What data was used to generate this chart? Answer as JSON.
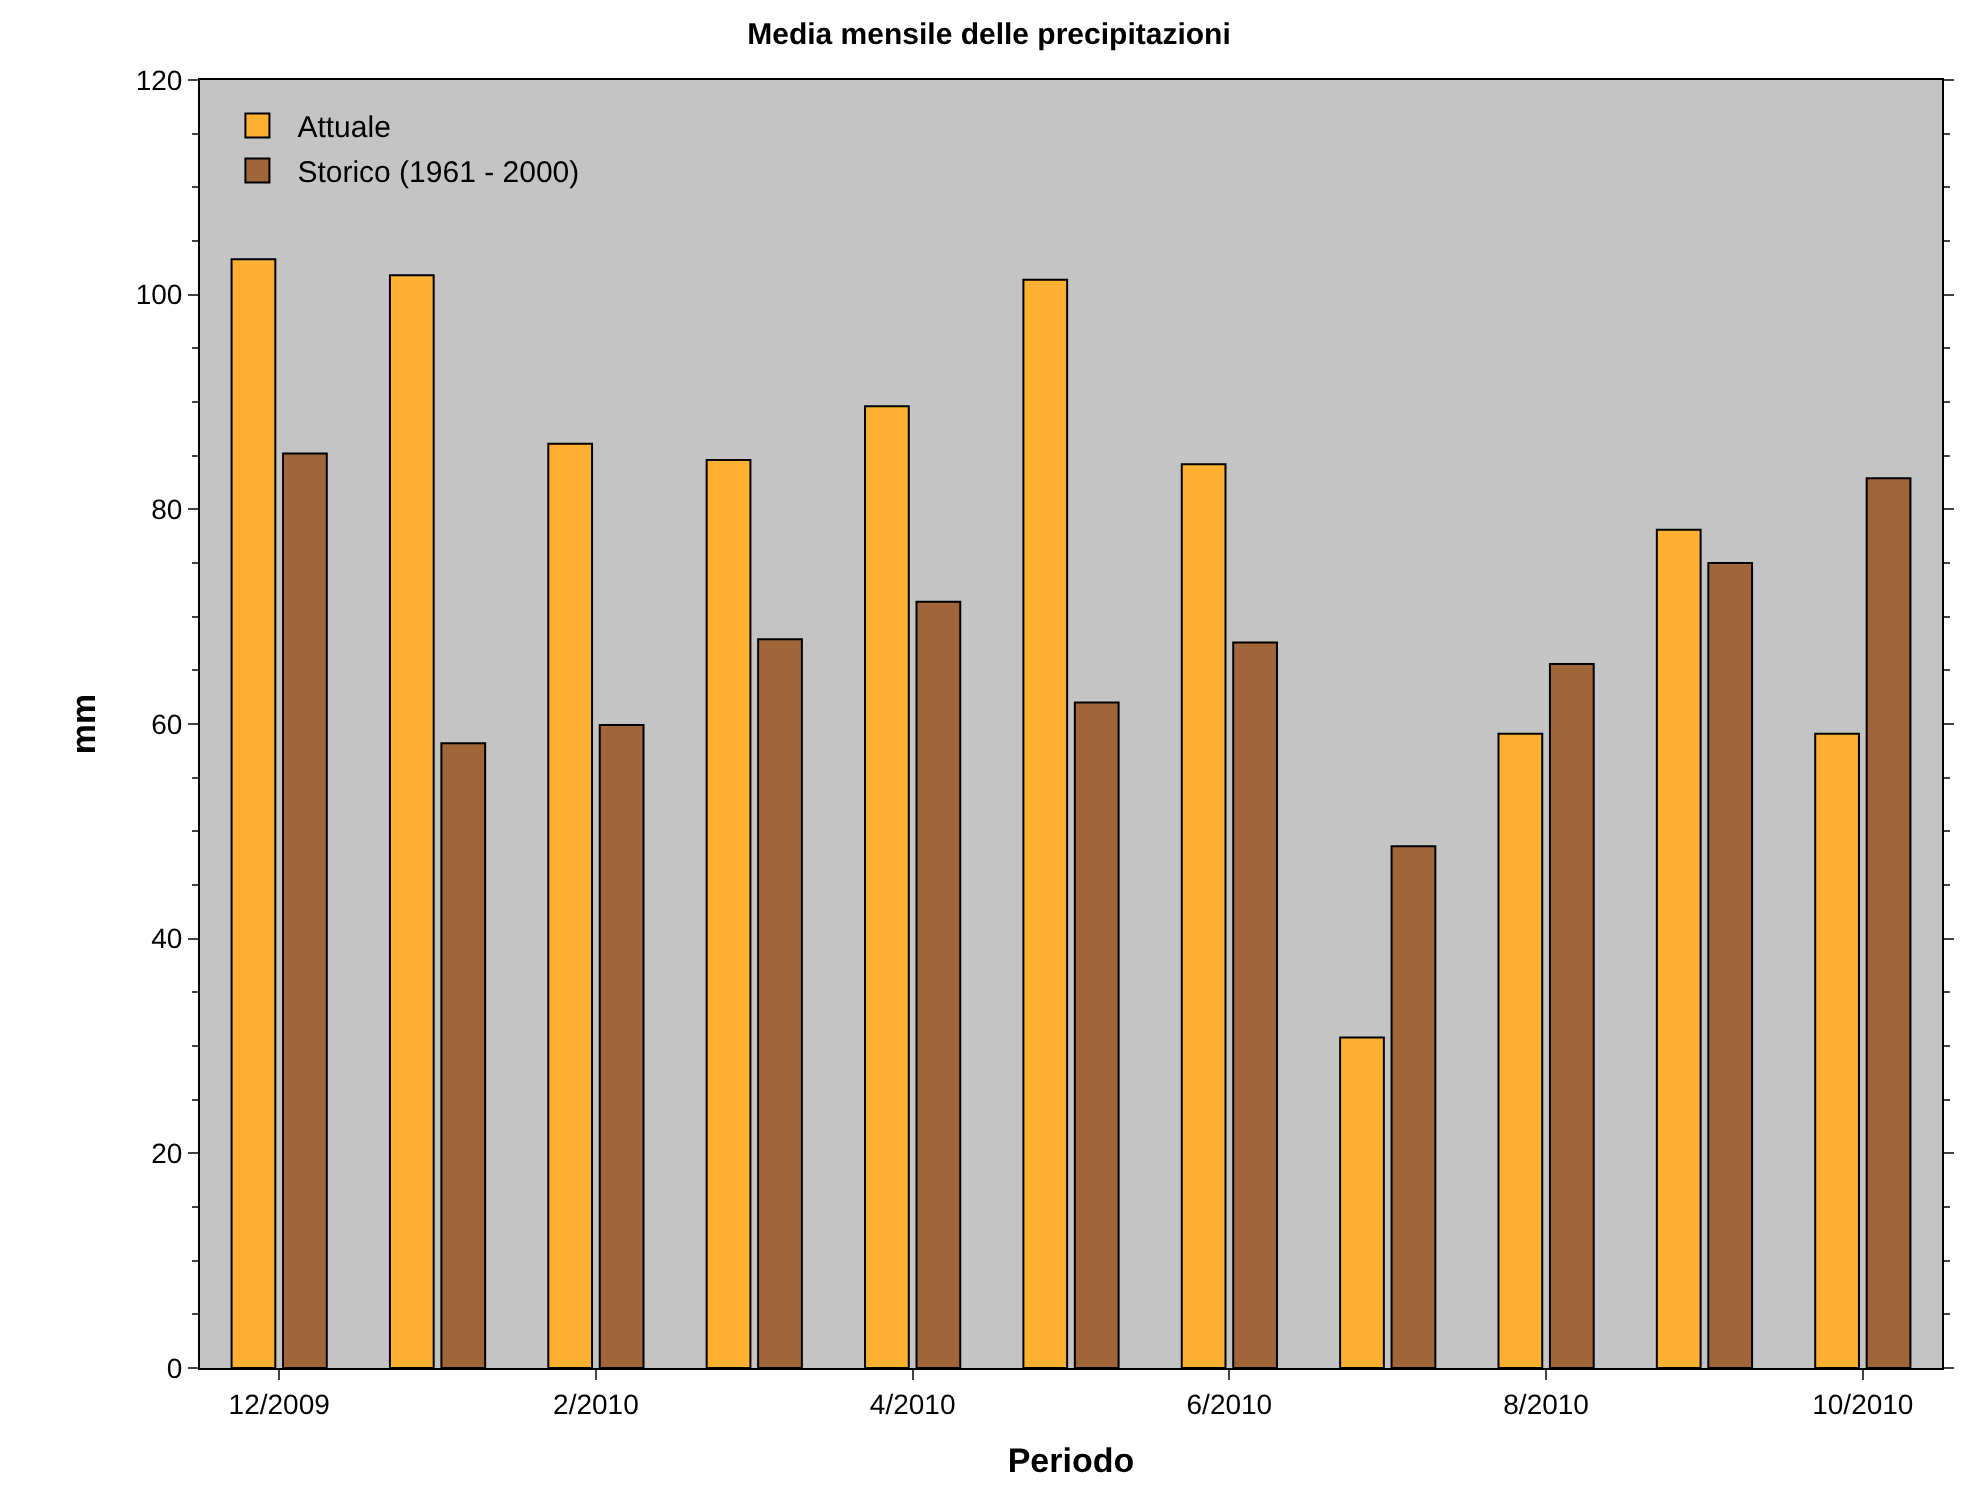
{
  "chart_data": {
    "type": "bar",
    "title": "Media mensile delle precipitazioni",
    "xlabel": "Periodo",
    "ylabel": "mm",
    "categories": [
      "12/2009",
      null,
      "2/2010",
      null,
      "4/2010",
      null,
      "6/2010",
      null,
      "8/2010",
      null,
      "10/2010"
    ],
    "series": [
      {
        "name": "Attuale",
        "color": "#ffb030",
        "values": [
          103.3,
          101.8,
          86.1,
          84.6,
          89.6,
          101.4,
          84.2,
          30.8,
          59.1,
          78.1,
          59.1
        ]
      },
      {
        "name": "Storico (1961 - 2000)",
        "color": "#a0663a",
        "values": [
          85.2,
          58.2,
          59.9,
          67.9,
          71.4,
          62,
          67.6,
          48.6,
          65.6,
          75,
          82.9
        ]
      }
    ],
    "ylim": [
      0,
      120
    ],
    "yticks": [
      0,
      20,
      40,
      60,
      80,
      100,
      120
    ],
    "grid": false,
    "legend": "top left"
  }
}
